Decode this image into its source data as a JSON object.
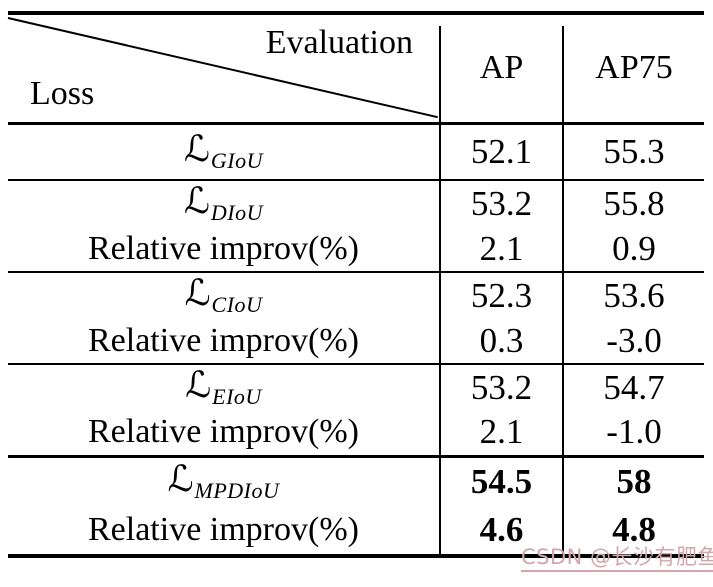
{
  "page": {
    "background": "#ffffff",
    "line_color": "#000000"
  },
  "watermark": {
    "text": "CSDN @长沙有肥鱼",
    "color": "#d2a6aa"
  },
  "table": {
    "header": {
      "corner_top": "Evaluation",
      "corner_bottom": "Loss",
      "columns": [
        "AP",
        "AP75"
      ]
    },
    "loss_symbol": "ℒ",
    "improv_label": "Relative improv(%)",
    "groups": [
      {
        "loss_sub": "GIoU",
        "ap": "52.1",
        "ap75": "55.3"
      },
      {
        "loss_sub": "DIoU",
        "ap": "53.2",
        "ap75": "55.8",
        "improv_ap": "2.1",
        "improv_ap75": "0.9"
      },
      {
        "loss_sub": "CIoU",
        "ap": "52.3",
        "ap75": "53.6",
        "improv_ap": "0.3",
        "improv_ap75": "-3.0"
      },
      {
        "loss_sub": "EIoU",
        "ap": "53.2",
        "ap75": "54.7",
        "improv_ap": "2.1",
        "improv_ap75": "-1.0"
      },
      {
        "loss_sub": "MPDIoU",
        "ap": "54.5",
        "ap75": "58",
        "improv_ap": "4.6",
        "improv_ap75": "4.8",
        "bold": true
      }
    ]
  },
  "chart_data": {
    "type": "table",
    "columns": [
      "Loss",
      "AP",
      "AP75"
    ],
    "rows": [
      [
        "L_GIoU",
        52.1,
        55.3
      ],
      [
        "L_DIoU",
        53.2,
        55.8
      ],
      [
        "Relative improv(%)",
        2.1,
        0.9
      ],
      [
        "L_CIoU",
        52.3,
        53.6
      ],
      [
        "Relative improv(%)",
        0.3,
        -3.0
      ],
      [
        "L_EIoU",
        53.2,
        54.7
      ],
      [
        "Relative improv(%)",
        2.1,
        -1.0
      ],
      [
        "L_MPDIoU",
        54.5,
        58
      ],
      [
        "Relative improv(%)",
        4.6,
        4.8
      ]
    ]
  }
}
